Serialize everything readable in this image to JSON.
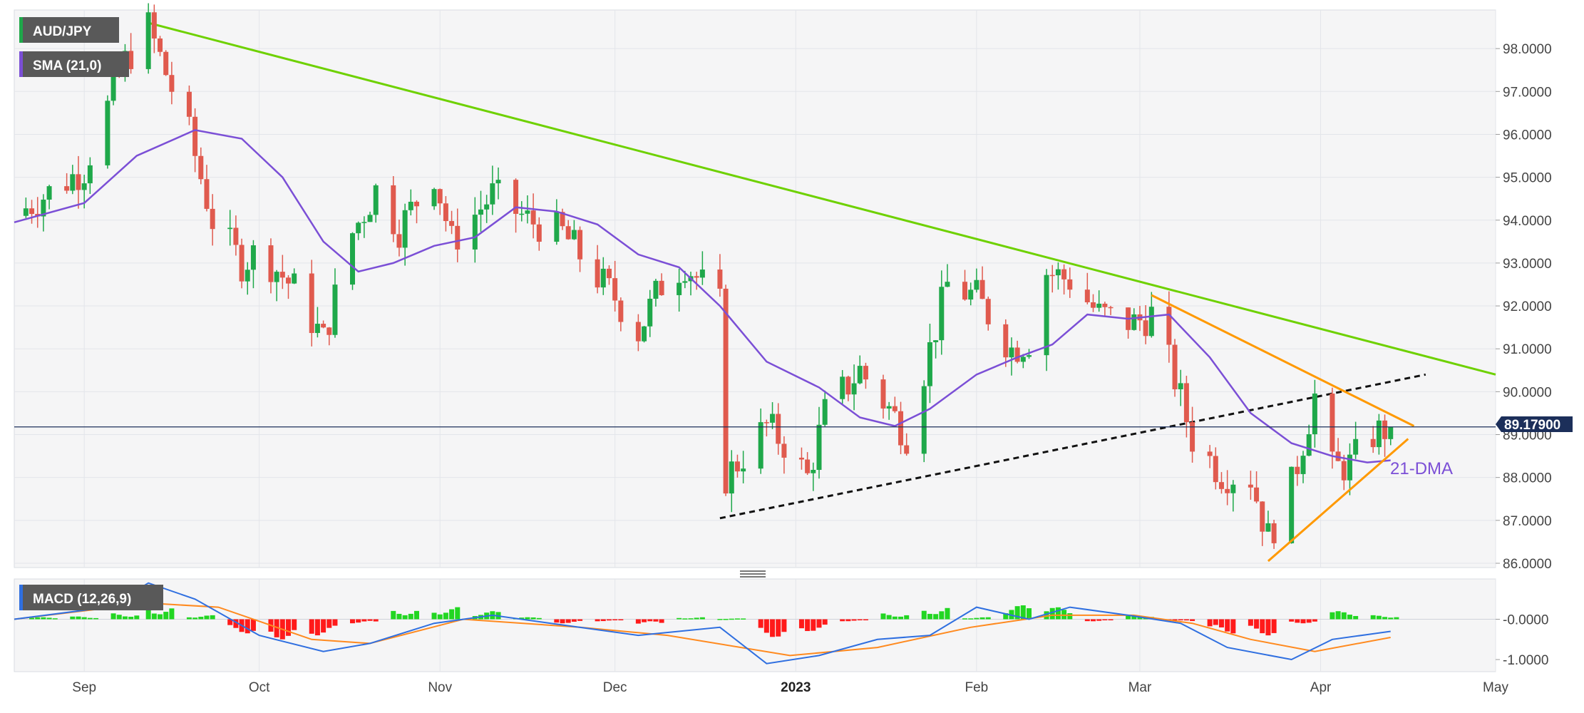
{
  "chart_data": {
    "type": "candlestick",
    "symbol": "AUD/JPY",
    "overlay_label": "SMA (21,0)",
    "indicator_label": "MACD (12,26,9)",
    "annotation": "21-DMA",
    "last_price": "89.17900",
    "y_ticks": [
      "98.0000",
      "97.0000",
      "96.0000",
      "95.0000",
      "94.0000",
      "93.0000",
      "92.0000",
      "91.0000",
      "90.0000",
      "89.0000",
      "88.0000",
      "87.0000",
      "86.0000"
    ],
    "ylim": [
      85.9,
      98.9
    ],
    "macd_ticks": [
      "-0.0000",
      "-1.0000"
    ],
    "x_labels": [
      {
        "label": "Sep",
        "date": "2022-09-01",
        "bold": false
      },
      {
        "label": "Oct",
        "date": "2022-10-01",
        "bold": false
      },
      {
        "label": "Nov",
        "date": "2022-11-01",
        "bold": false
      },
      {
        "label": "Dec",
        "date": "2022-12-01",
        "bold": false
      },
      {
        "label": "2023",
        "date": "2023-01-01",
        "bold": true
      },
      {
        "label": "Feb",
        "date": "2023-02-01",
        "bold": false
      },
      {
        "label": "Mar",
        "date": "2023-03-01",
        "bold": false
      },
      {
        "label": "Apr",
        "date": "2023-04-01",
        "bold": false
      },
      {
        "label": "May",
        "date": "2023-05-01",
        "bold": false
      }
    ],
    "x_range": [
      "2022-08-20",
      "2023-05-01"
    ],
    "close_series": [
      [
        "2022-08-20",
        94.1
      ],
      [
        "2022-09-01",
        95.2
      ],
      [
        "2022-09-08",
        97.7
      ],
      [
        "2022-09-12",
        98.5
      ],
      [
        "2022-09-19",
        96.0
      ],
      [
        "2022-09-23",
        94.0
      ],
      [
        "2022-09-28",
        93.0
      ],
      [
        "2022-10-01",
        93.3
      ],
      [
        "2022-10-07",
        92.4
      ],
      [
        "2022-10-12",
        91.2
      ],
      [
        "2022-10-17",
        93.7
      ],
      [
        "2022-10-21",
        94.7
      ],
      [
        "2022-10-25",
        93.8
      ],
      [
        "2022-10-31",
        95.1
      ],
      [
        "2022-11-03",
        93.5
      ],
      [
        "2022-11-10",
        94.6
      ],
      [
        "2022-11-16",
        94.0
      ],
      [
        "2022-11-22",
        93.7
      ],
      [
        "2022-11-29",
        92.5
      ],
      [
        "2022-12-01",
        92.2
      ],
      [
        "2022-12-05",
        91.4
      ],
      [
        "2022-12-09",
        92.5
      ],
      [
        "2022-12-13",
        93.0
      ],
      [
        "2022-12-19",
        92.0
      ],
      [
        "2022-12-20",
        88.0
      ],
      [
        "2022-12-27",
        89.2
      ],
      [
        "2022-12-30",
        88.8
      ],
      [
        "2023-01-03",
        88.0
      ],
      [
        "2023-01-06",
        89.5
      ],
      [
        "2023-01-12",
        90.5
      ],
      [
        "2023-01-17",
        89.6
      ],
      [
        "2023-01-20",
        89.0
      ],
      [
        "2023-01-24",
        91.0
      ],
      [
        "2023-01-27",
        92.5
      ],
      [
        "2023-02-01",
        92.2
      ],
      [
        "2023-02-07",
        91.0
      ],
      [
        "2023-02-10",
        91.2
      ],
      [
        "2023-02-13",
        92.8
      ],
      [
        "2023-02-17",
        92.6
      ],
      [
        "2023-02-22",
        91.8
      ],
      [
        "2023-02-28",
        91.6
      ],
      [
        "2023-03-03",
        91.8
      ],
      [
        "2023-03-07",
        90.3
      ],
      [
        "2023-03-10",
        88.9
      ],
      [
        "2023-03-15",
        88.1
      ],
      [
        "2023-03-20",
        88.0
      ],
      [
        "2023-03-23",
        86.6
      ],
      [
        "2023-03-27",
        87.8
      ],
      [
        "2023-03-31",
        89.9
      ],
      [
        "2023-04-03",
        88.2
      ],
      [
        "2023-04-06",
        88.3
      ],
      [
        "2023-04-10",
        89.0
      ],
      [
        "2023-04-13",
        89.18
      ]
    ],
    "sma21_series": [
      [
        "2022-08-20",
        93.95
      ],
      [
        "2022-09-01",
        94.4
      ],
      [
        "2022-09-10",
        95.5
      ],
      [
        "2022-09-20",
        96.1
      ],
      [
        "2022-09-28",
        95.9
      ],
      [
        "2022-10-05",
        95.0
      ],
      [
        "2022-10-12",
        93.5
      ],
      [
        "2022-10-18",
        92.8
      ],
      [
        "2022-10-24",
        93.0
      ],
      [
        "2022-10-31",
        93.4
      ],
      [
        "2022-11-07",
        93.6
      ],
      [
        "2022-11-14",
        94.3
      ],
      [
        "2022-11-21",
        94.2
      ],
      [
        "2022-11-28",
        93.9
      ],
      [
        "2022-12-05",
        93.2
      ],
      [
        "2022-12-12",
        92.9
      ],
      [
        "2022-12-19",
        92.0
      ],
      [
        "2022-12-27",
        90.7
      ],
      [
        "2023-01-05",
        90.1
      ],
      [
        "2023-01-12",
        89.4
      ],
      [
        "2023-01-18",
        89.2
      ],
      [
        "2023-01-24",
        89.6
      ],
      [
        "2023-02-01",
        90.4
      ],
      [
        "2023-02-08",
        90.8
      ],
      [
        "2023-02-14",
        91.1
      ],
      [
        "2023-02-20",
        91.8
      ],
      [
        "2023-02-27",
        91.7
      ],
      [
        "2023-03-06",
        91.8
      ],
      [
        "2023-03-13",
        90.8
      ],
      [
        "2023-03-20",
        89.5
      ],
      [
        "2023-03-27",
        88.8
      ],
      [
        "2023-04-03",
        88.5
      ],
      [
        "2023-04-09",
        88.35
      ],
      [
        "2023-04-13",
        88.4
      ]
    ],
    "trendlines": [
      {
        "name": "falling-resistance",
        "color": "#6ed100",
        "points": [
          [
            "2022-09-12",
            98.6
          ],
          [
            "2023-05-01",
            90.4
          ]
        ]
      },
      {
        "name": "rising-support-dashed",
        "color": "#111111",
        "dashed": true,
        "points": [
          [
            "2022-12-19",
            87.05
          ],
          [
            "2023-04-19",
            90.4
          ]
        ]
      },
      {
        "name": "triangle-upper",
        "color": "#ff9900",
        "points": [
          [
            "2023-03-03",
            92.25
          ],
          [
            "2023-04-17",
            89.2
          ]
        ]
      },
      {
        "name": "triangle-lower",
        "color": "#ff9900",
        "points": [
          [
            "2023-03-23",
            86.05
          ],
          [
            "2023-04-16",
            88.9
          ]
        ]
      }
    ],
    "macd_line": [
      [
        "2022-08-20",
        0.0
      ],
      [
        "2022-09-05",
        0.3
      ],
      [
        "2022-09-12",
        0.9
      ],
      [
        "2022-09-20",
        0.5
      ],
      [
        "2022-10-01",
        -0.4
      ],
      [
        "2022-10-12",
        -0.8
      ],
      [
        "2022-10-20",
        -0.6
      ],
      [
        "2022-10-31",
        -0.1
      ],
      [
        "2022-11-10",
        0.1
      ],
      [
        "2022-11-20",
        -0.1
      ],
      [
        "2022-12-05",
        -0.4
      ],
      [
        "2022-12-19",
        -0.2
      ],
      [
        "2022-12-27",
        -1.1
      ],
      [
        "2023-01-05",
        -0.9
      ],
      [
        "2023-01-15",
        -0.5
      ],
      [
        "2023-01-24",
        -0.4
      ],
      [
        "2023-02-01",
        0.3
      ],
      [
        "2023-02-10",
        0.0
      ],
      [
        "2023-02-17",
        0.3
      ],
      [
        "2023-02-27",
        0.1
      ],
      [
        "2023-03-08",
        -0.1
      ],
      [
        "2023-03-16",
        -0.7
      ],
      [
        "2023-03-27",
        -1.0
      ],
      [
        "2023-04-03",
        -0.5
      ],
      [
        "2023-04-13",
        -0.3
      ]
    ],
    "signal_line": [
      [
        "2022-08-20",
        0.0
      ],
      [
        "2022-09-12",
        0.4
      ],
      [
        "2022-09-24",
        0.3
      ],
      [
        "2022-10-10",
        -0.5
      ],
      [
        "2022-10-20",
        -0.6
      ],
      [
        "2022-11-05",
        0.0
      ],
      [
        "2022-11-25",
        -0.2
      ],
      [
        "2022-12-10",
        -0.4
      ],
      [
        "2022-12-31",
        -0.9
      ],
      [
        "2023-01-15",
        -0.7
      ],
      [
        "2023-01-31",
        -0.2
      ],
      [
        "2023-02-14",
        0.1
      ],
      [
        "2023-02-28",
        0.1
      ],
      [
        "2023-03-10",
        -0.1
      ],
      [
        "2023-03-20",
        -0.5
      ],
      [
        "2023-03-31",
        -0.8
      ],
      [
        "2023-04-13",
        -0.45
      ]
    ],
    "macd_histogram": [
      [
        "2022-08-23",
        0.05
      ],
      [
        "2022-08-30",
        0.07
      ],
      [
        "2022-09-06",
        0.15
      ],
      [
        "2022-09-12",
        0.3
      ],
      [
        "2022-09-19",
        0.1
      ],
      [
        "2022-09-26",
        -0.35
      ],
      [
        "2022-10-03",
        -0.5
      ],
      [
        "2022-10-10",
        -0.4
      ],
      [
        "2022-10-17",
        -0.1
      ],
      [
        "2022-10-24",
        0.25
      ],
      [
        "2022-10-31",
        0.3
      ],
      [
        "2022-11-07",
        0.2
      ],
      [
        "2022-11-14",
        0.05
      ],
      [
        "2022-11-21",
        -0.1
      ],
      [
        "2022-11-28",
        -0.05
      ],
      [
        "2022-12-05",
        -0.12
      ],
      [
        "2022-12-12",
        0.05
      ],
      [
        "2022-12-19",
        0.02
      ],
      [
        "2022-12-26",
        -0.45
      ],
      [
        "2023-01-02",
        -0.3
      ],
      [
        "2023-01-09",
        -0.05
      ],
      [
        "2023-01-16",
        0.15
      ],
      [
        "2023-01-23",
        0.3
      ],
      [
        "2023-01-30",
        0.05
      ],
      [
        "2023-02-06",
        0.35
      ],
      [
        "2023-02-13",
        0.3
      ],
      [
        "2023-02-20",
        -0.05
      ],
      [
        "2023-02-27",
        0.1
      ],
      [
        "2023-03-06",
        -0.05
      ],
      [
        "2023-03-13",
        -0.35
      ],
      [
        "2023-03-20",
        -0.4
      ],
      [
        "2023-03-27",
        -0.1
      ],
      [
        "2023-04-03",
        0.2
      ],
      [
        "2023-04-10",
        0.1
      ]
    ],
    "macd_ylim": [
      -1.3,
      1.0
    ],
    "colors": {
      "up": "#1fa84a",
      "down": "#e05a4e",
      "sma": "#7b4fd6",
      "macd": "#2f6fe0",
      "signal": "#ff8a1f",
      "hist_up": "#22d622",
      "hist_down": "#ff1a1a",
      "price_line": "#1c2f5a",
      "legend_bg": "#595959"
    }
  }
}
